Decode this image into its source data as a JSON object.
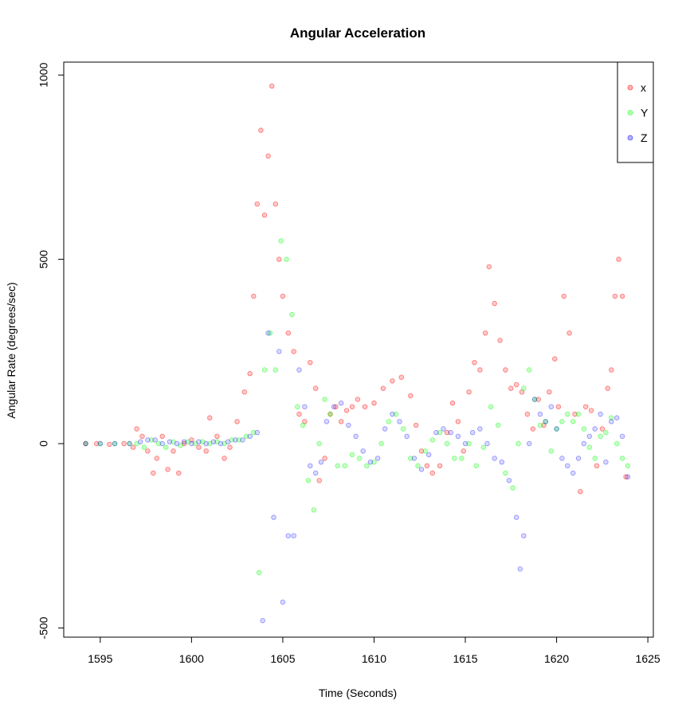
{
  "chart_data": {
    "type": "scatter",
    "title": "Angular Acceleration",
    "xlabel": "Time (Seconds)",
    "ylabel": "Angular Rate (degrees/sec)",
    "xlim": [
      1593.0,
      1625.3
    ],
    "ylim": [
      -525,
      1035
    ],
    "xticks": [
      1595,
      1600,
      1605,
      1610,
      1615,
      1620,
      1625
    ],
    "yticks": [
      -500,
      0,
      500,
      1000
    ],
    "grid": false,
    "legend_position": "top-right",
    "series": [
      {
        "name": "x",
        "color": "#FF0000",
        "x": [
          1594.2,
          1594.8,
          1595.5,
          1596.3,
          1596.8,
          1597.0,
          1597.3,
          1597.6,
          1597.9,
          1598.1,
          1598.4,
          1598.7,
          1599.0,
          1599.3,
          1599.6,
          1600.0,
          1600.4,
          1600.8,
          1601.0,
          1601.4,
          1601.8,
          1602.1,
          1602.5,
          1602.9,
          1603.2,
          1603.4,
          1603.6,
          1603.8,
          1604.0,
          1604.2,
          1604.4,
          1604.6,
          1604.8,
          1605.0,
          1605.3,
          1605.6,
          1605.9,
          1606.2,
          1606.5,
          1606.8,
          1607.0,
          1607.3,
          1607.6,
          1607.9,
          1608.2,
          1608.5,
          1608.8,
          1609.1,
          1609.5,
          1610.0,
          1610.5,
          1611.0,
          1611.5,
          1612.0,
          1612.3,
          1612.6,
          1612.9,
          1613.2,
          1613.6,
          1614.0,
          1614.3,
          1614.6,
          1614.9,
          1615.2,
          1615.5,
          1615.8,
          1616.1,
          1616.3,
          1616.6,
          1616.9,
          1617.2,
          1617.5,
          1617.8,
          1618.1,
          1618.4,
          1618.7,
          1619.0,
          1619.3,
          1619.6,
          1619.9,
          1620.1,
          1620.4,
          1620.7,
          1621.0,
          1621.3,
          1621.6,
          1621.9,
          1622.2,
          1622.5,
          1622.8,
          1623.0,
          1623.2,
          1623.4,
          1623.6,
          1623.8
        ],
        "y": [
          0,
          0,
          -2,
          0,
          -10,
          40,
          20,
          -20,
          -80,
          -40,
          20,
          -70,
          -20,
          -80,
          0,
          10,
          -10,
          -20,
          70,
          20,
          -40,
          -10,
          60,
          140,
          190,
          400,
          650,
          850,
          620,
          780,
          970,
          650,
          500,
          400,
          300,
          250,
          80,
          60,
          220,
          150,
          -100,
          -40,
          80,
          100,
          60,
          90,
          100,
          120,
          100,
          110,
          150,
          170,
          180,
          130,
          50,
          -20,
          -60,
          -80,
          -60,
          30,
          110,
          60,
          -20,
          140,
          220,
          200,
          300,
          480,
          380,
          280,
          200,
          150,
          160,
          140,
          80,
          40,
          120,
          50,
          140,
          230,
          100,
          400,
          300,
          80,
          -130,
          100,
          90,
          -60,
          40,
          150,
          200,
          400,
          500,
          400,
          -90
        ],
        "alpha": 0.35
      },
      {
        "name": "Y",
        "color": "#00FF00",
        "x": [
          1594.2,
          1595.0,
          1595.8,
          1596.6,
          1597.0,
          1597.4,
          1597.8,
          1598.2,
          1598.6,
          1599.0,
          1599.4,
          1599.8,
          1600.2,
          1600.6,
          1601.0,
          1601.4,
          1601.8,
          1602.2,
          1602.6,
          1603.0,
          1603.4,
          1603.7,
          1604.0,
          1604.3,
          1604.6,
          1604.9,
          1605.2,
          1605.5,
          1605.8,
          1606.1,
          1606.4,
          1606.7,
          1607.0,
          1607.3,
          1607.6,
          1608.0,
          1608.4,
          1608.8,
          1609.2,
          1609.6,
          1610.0,
          1610.4,
          1610.8,
          1611.2,
          1611.6,
          1612.0,
          1612.4,
          1612.8,
          1613.2,
          1613.6,
          1614.0,
          1614.4,
          1614.8,
          1615.2,
          1615.6,
          1616.0,
          1616.4,
          1616.8,
          1617.2,
          1617.6,
          1617.9,
          1618.2,
          1618.5,
          1618.8,
          1619.1,
          1619.4,
          1619.7,
          1620.0,
          1620.3,
          1620.6,
          1620.9,
          1621.2,
          1621.5,
          1621.8,
          1622.1,
          1622.4,
          1622.7,
          1623.0,
          1623.3,
          1623.6,
          1623.9
        ],
        "y": [
          0,
          0,
          0,
          0,
          0,
          -10,
          10,
          0,
          -10,
          5,
          -5,
          5,
          0,
          5,
          0,
          5,
          0,
          10,
          10,
          20,
          30,
          -350,
          200,
          300,
          200,
          550,
          500,
          350,
          100,
          50,
          -100,
          -180,
          0,
          120,
          80,
          -60,
          -60,
          -30,
          -40,
          -60,
          -50,
          0,
          60,
          80,
          40,
          -40,
          -60,
          -20,
          10,
          30,
          0,
          -40,
          -40,
          0,
          -60,
          -10,
          100,
          50,
          -80,
          -120,
          0,
          150,
          200,
          120,
          50,
          60,
          -20,
          40,
          60,
          80,
          60,
          80,
          40,
          -10,
          -40,
          20,
          30,
          70,
          0,
          -40,
          -60
        ],
        "alpha": 0.35
      },
      {
        "name": "Z",
        "color": "#0000FF",
        "x": [
          1594.2,
          1595.0,
          1595.8,
          1596.6,
          1597.2,
          1597.6,
          1598.0,
          1598.4,
          1598.8,
          1599.2,
          1599.6,
          1600.0,
          1600.4,
          1600.8,
          1601.2,
          1601.6,
          1602.0,
          1602.4,
          1602.8,
          1603.2,
          1603.6,
          1603.9,
          1604.2,
          1604.5,
          1604.8,
          1605.0,
          1605.3,
          1605.6,
          1605.9,
          1606.2,
          1606.5,
          1606.8,
          1607.1,
          1607.4,
          1607.8,
          1608.2,
          1608.6,
          1609.0,
          1609.4,
          1609.8,
          1610.2,
          1610.6,
          1611.0,
          1611.4,
          1611.8,
          1612.2,
          1612.6,
          1613.0,
          1613.4,
          1613.8,
          1614.2,
          1614.6,
          1615.0,
          1615.4,
          1615.8,
          1616.2,
          1616.6,
          1617.0,
          1617.4,
          1617.8,
          1618.0,
          1618.2,
          1618.5,
          1618.8,
          1619.1,
          1619.4,
          1619.7,
          1620.0,
          1620.3,
          1620.6,
          1620.9,
          1621.2,
          1621.5,
          1621.8,
          1622.1,
          1622.4,
          1622.7,
          1623.0,
          1623.3,
          1623.6,
          1623.9
        ],
        "y": [
          0,
          0,
          0,
          0,
          5,
          10,
          10,
          0,
          5,
          0,
          5,
          0,
          5,
          0,
          5,
          0,
          5,
          10,
          10,
          20,
          30,
          -480,
          300,
          -200,
          250,
          -430,
          -250,
          -250,
          200,
          100,
          -60,
          -80,
          -50,
          60,
          100,
          110,
          50,
          20,
          -20,
          -50,
          -40,
          40,
          80,
          60,
          20,
          -40,
          -70,
          -30,
          30,
          40,
          30,
          20,
          0,
          30,
          40,
          0,
          -40,
          -50,
          -100,
          -200,
          -340,
          -250,
          0,
          120,
          80,
          60,
          100,
          40,
          -40,
          -60,
          -80,
          -40,
          0,
          20,
          40,
          80,
          -50,
          60,
          70,
          20,
          -90
        ],
        "alpha": 0.25
      }
    ]
  }
}
